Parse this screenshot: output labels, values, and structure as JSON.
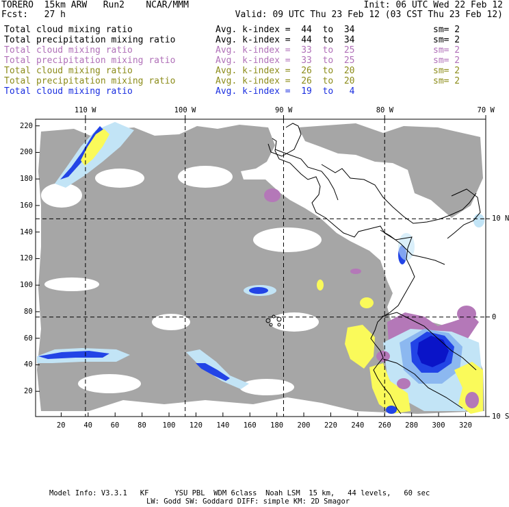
{
  "header": {
    "left1": "TORERO  15km ARW   Run2    NCAR/MMM",
    "right1": "Init: 06 UTC Wed 22 Feb 12",
    "left2": "Fcst:   27 h",
    "right2": "Valid: 09 UTC Thu 23 Feb 12 (03 CST Thu 23 Feb 12)"
  },
  "legend": [
    {
      "field": "Total cloud mixing ratio",
      "kindex": "Avg. k-index =  44  to  34",
      "sm": "sm= 2",
      "color": "#000000"
    },
    {
      "field": "Total precipitation mixing ratio",
      "kindex": "Avg. k-index =  44  to  34",
      "sm": "sm= 2",
      "color": "#000000"
    },
    {
      "field": "Total cloud mixing ratio",
      "kindex": "Avg. k-index =  33  to  25",
      "sm": "sm= 2",
      "color": "#b070b8"
    },
    {
      "field": "Total precipitation mixing ratio",
      "kindex": "Avg. k-index =  33  to  25",
      "sm": "sm= 2",
      "color": "#b070b8"
    },
    {
      "field": "Total cloud mixing ratio",
      "kindex": "Avg. k-index =  26  to  20",
      "sm": "sm= 2",
      "color": "#8c8c1a"
    },
    {
      "field": "Total precipitation mixing ratio",
      "kindex": "Avg. k-index =  26  to  20",
      "sm": "sm= 2",
      "color": "#8c8c1a"
    },
    {
      "field": "Total cloud mixing ratio",
      "kindex": "Avg. k-index =  19  to   4",
      "sm": "",
      "color": "#1a2ee0"
    }
  ],
  "map": {
    "x_range": [
      1,
      335
    ],
    "y_range": [
      1,
      225
    ],
    "x_ticks": [
      20,
      40,
      60,
      80,
      100,
      120,
      140,
      160,
      180,
      200,
      220,
      240,
      260,
      280,
      300,
      320
    ],
    "y_ticks": [
      20,
      40,
      60,
      80,
      100,
      120,
      140,
      160,
      180,
      200,
      220
    ],
    "lon_labels": [
      {
        "text": "110 W",
        "x": 38
      },
      {
        "text": "100 W",
        "x": 112
      },
      {
        "text": "90 W",
        "x": 185
      },
      {
        "text": "80 W",
        "x": 260
      },
      {
        "text": "70 W",
        "x": 335
      }
    ],
    "lat_labels": [
      {
        "text": "10 N",
        "y": 150
      },
      {
        "text": "0",
        "y": 76
      },
      {
        "text": "10 S",
        "y": 1
      }
    ],
    "lon_lines_x": [
      38,
      112,
      185,
      260
    ],
    "lat_lines_y": [
      150,
      76
    ],
    "colors": {
      "light_cloud": "#a6a6a6",
      "pale_blue": "#c2e4f6",
      "light_blue": "#8cb8f0",
      "blue": "#2244e6",
      "dark_blue": "#0a14c8",
      "purple": "#b478b8",
      "yellow": "#fafa5a"
    }
  },
  "footer": {
    "line1": "Model Info: V3.3.1   KF      YSU PBL  WDM 6class  Noah LSM  15 km,   44 levels,   60 sec",
    "line2": "LW: Godd SW: Goddard DIFF: simple KM: 2D Smagor"
  }
}
